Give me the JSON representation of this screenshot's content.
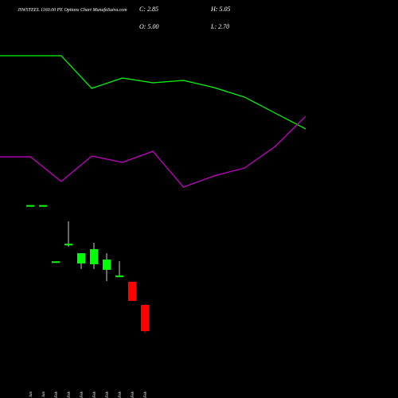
{
  "chart_data": [
    {
      "type": "candlestick",
      "title": "JSWSTEEL 1160.00 PE Options Chart MunafaSutra.com",
      "ohlc_labels": [
        "C: 2.85",
        "H: 5.05",
        "O: 5.00",
        "L: 2.70"
      ],
      "categories": [
        "29 Jan",
        "30 Jan",
        "10 Feb",
        "13 Feb",
        "14 Feb",
        "18 Feb",
        "19 Feb",
        "20 Feb",
        "24 Feb",
        "25 Feb"
      ],
      "open": [
        13.1,
        13.1,
        8.5,
        9.9,
        8.39,
        8.32,
        7.87,
        7.3,
        6.89,
        5.0
      ],
      "high": [
        13.1,
        13.1,
        8.5,
        11.84,
        9.23,
        10.08,
        9.23,
        8.58,
        6.89,
        5.05
      ],
      "low": [
        13.1,
        13.1,
        8.5,
        9.76,
        7.93,
        7.93,
        6.95,
        7.28,
        5.33,
        2.7
      ],
      "close": [
        13.1,
        13.1,
        8.5,
        10.0,
        9.23,
        9.56,
        8.71,
        7.4,
        5.33,
        2.85
      ],
      "up_color": "#00ff00",
      "down_color": "#ff0000",
      "ylim": [
        -2.62,
        29.95
      ]
    },
    {
      "type": "line",
      "categories": [
        null,
        null,
        null,
        null,
        null,
        null,
        null,
        null,
        null,
        null,
        null
      ],
      "series": [
        {
          "color": "#00ff00",
          "values": [
            430,
            430,
            430,
            389,
            402,
            396,
            399,
            390,
            378,
            358,
            338
          ]
        },
        {
          "color": "#cc00cc",
          "values": [
            303,
            303,
            272,
            304,
            296,
            310,
            265,
            279,
            289,
            316,
            354
          ]
        }
      ],
      "ylim": [
        0,
        500
      ]
    }
  ]
}
